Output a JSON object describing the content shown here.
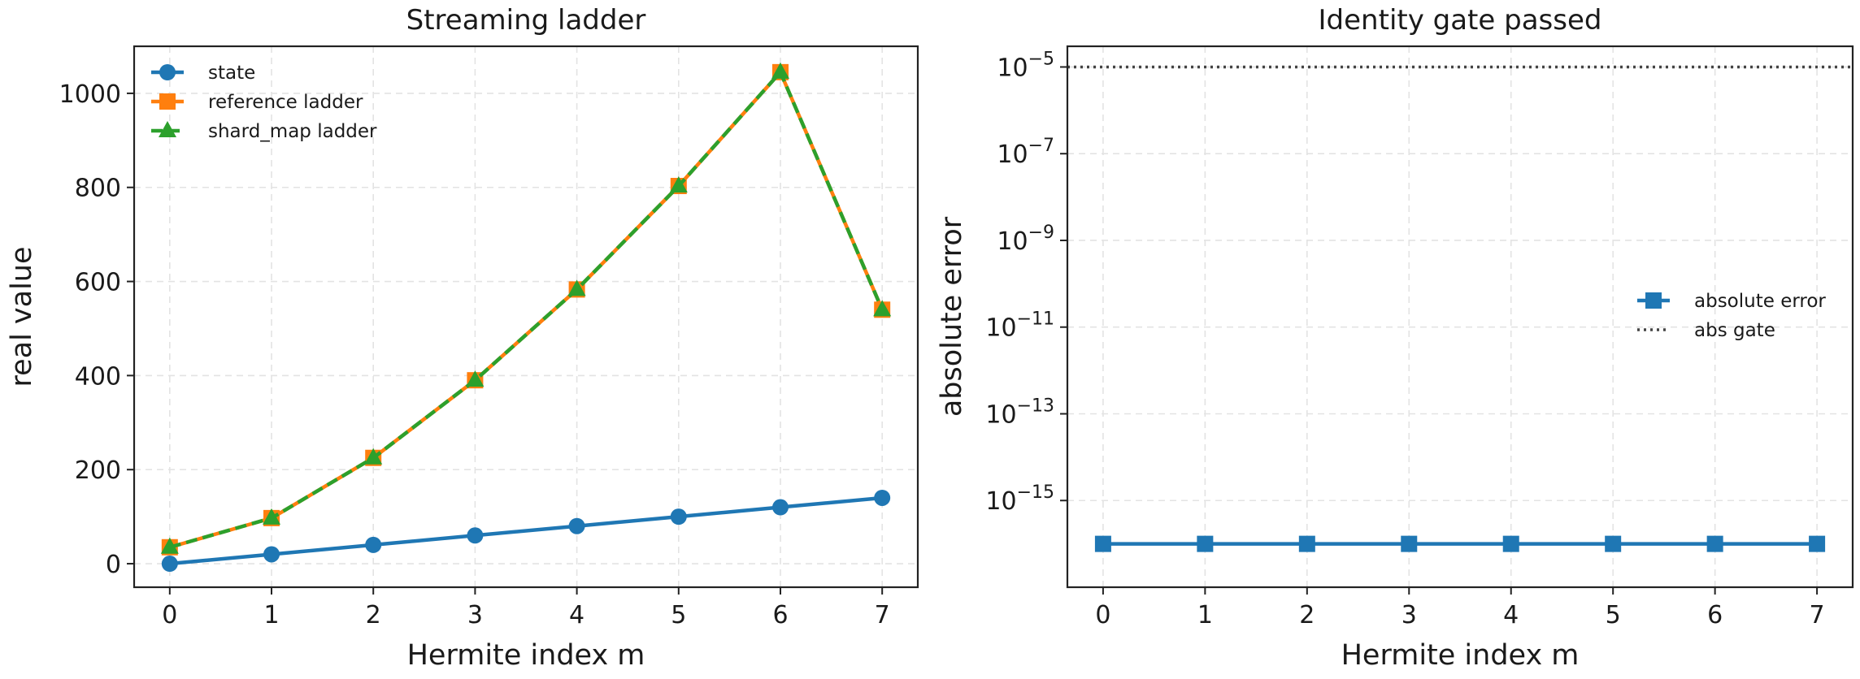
{
  "chart_data": [
    {
      "type": "line",
      "title": "Streaming ladder",
      "xlabel": "Hermite index m",
      "ylabel": "real value",
      "x": [
        0,
        1,
        2,
        3,
        4,
        5,
        6,
        7
      ],
      "xticks": [
        "0",
        "1",
        "2",
        "3",
        "4",
        "5",
        "6",
        "7"
      ],
      "ylim": [
        -50,
        1100
      ],
      "yticks": [
        0,
        200,
        400,
        600,
        800,
        1000
      ],
      "ytick_labels": [
        "0",
        "200",
        "400",
        "600",
        "800",
        "1000"
      ],
      "grid": true,
      "legend_position": "top-left",
      "series": [
        {
          "name": "state",
          "marker": "circle",
          "linestyle": "solid",
          "color": "#1f77b4",
          "values": [
            0,
            20,
            40,
            60,
            80,
            100,
            120,
            140
          ]
        },
        {
          "name": "reference ladder",
          "marker": "square",
          "linestyle": "solid",
          "color": "#ff7f0e",
          "values": [
            35,
            97,
            225,
            390,
            583,
            803,
            1045,
            540
          ]
        },
        {
          "name": "shard_map ladder",
          "marker": "triangle",
          "linestyle": "dashed",
          "color": "#2ca02c",
          "values": [
            35,
            97,
            225,
            390,
            583,
            803,
            1045,
            540
          ]
        }
      ]
    },
    {
      "type": "line",
      "title": "Identity gate passed",
      "xlabel": "Hermite index m",
      "ylabel": "absolute error",
      "yscale": "log",
      "x": [
        0,
        1,
        2,
        3,
        4,
        5,
        6,
        7
      ],
      "xticks": [
        "0",
        "1",
        "2",
        "3",
        "4",
        "5",
        "6",
        "7"
      ],
      "ylim": [
        1e-17,
        3e-05
      ],
      "yticks": [
        {
          "base": "10",
          "exp": "−5",
          "value": 1e-05
        },
        {
          "base": "10",
          "exp": "−7",
          "value": 1e-07
        },
        {
          "base": "10",
          "exp": "−9",
          "value": 1e-09
        },
        {
          "base": "10",
          "exp": "−11",
          "value": 1e-11
        },
        {
          "base": "10",
          "exp": "−13",
          "value": 1e-13
        },
        {
          "base": "10",
          "exp": "−15",
          "value": 1e-15
        }
      ],
      "grid": true,
      "legend_position": "center-right",
      "series": [
        {
          "name": "absolute error",
          "marker": "square",
          "linestyle": "solid",
          "color": "#1f77b4",
          "values": [
            1e-16,
            1e-16,
            1e-16,
            1e-16,
            1e-16,
            1e-16,
            1e-16,
            1e-16
          ]
        },
        {
          "name": "abs gate",
          "marker": "none",
          "linestyle": "dotted",
          "color": "#444444",
          "hline": 1e-05
        }
      ]
    }
  ]
}
